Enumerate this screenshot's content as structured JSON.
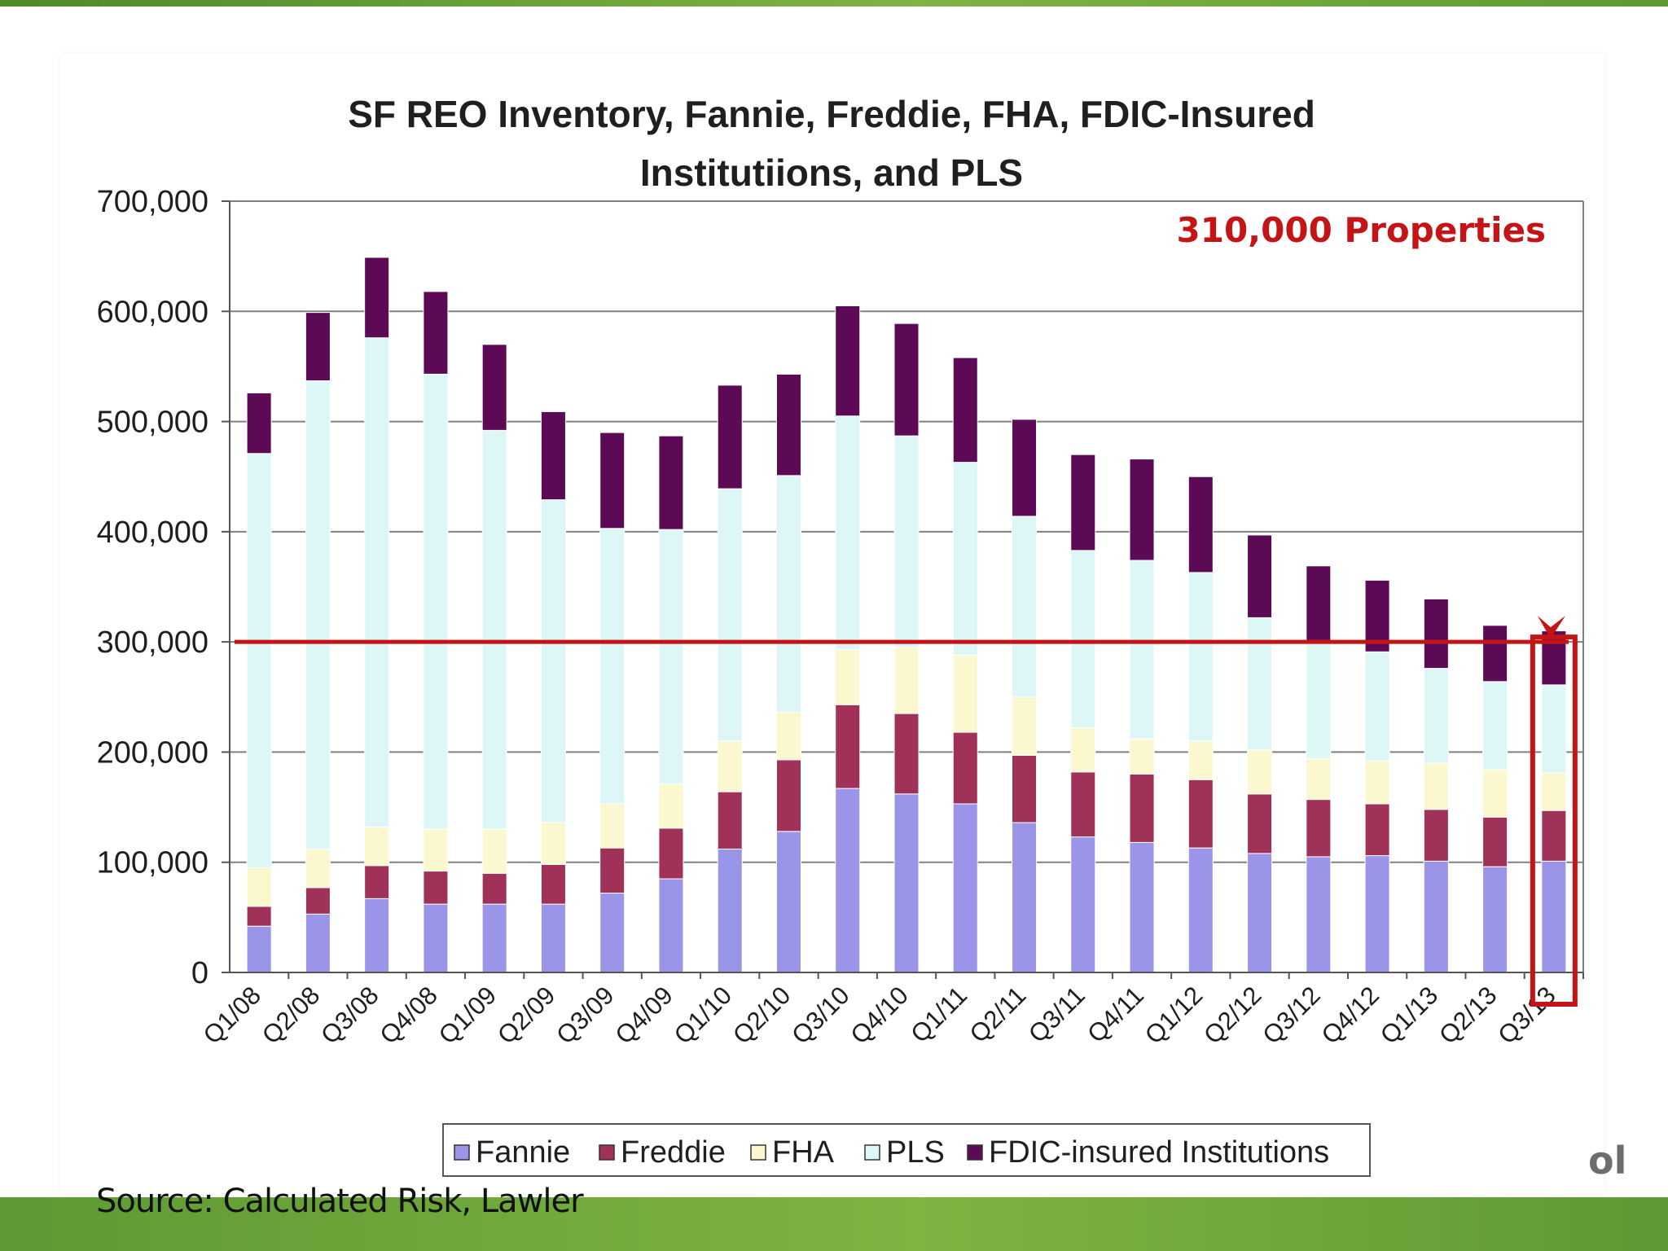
{
  "chart_data": {
    "type": "bar",
    "stacked": true,
    "title": "SF REO Inventory, Fannie, Freddie, FHA, FDIC-Insured",
    "title_line2": "Institutiions, and PLS",
    "categories": [
      "Q1/08",
      "Q2/08",
      "Q3/08",
      "Q4/08",
      "Q1/09",
      "Q2/09",
      "Q3/09",
      "Q4/09",
      "Q1/10",
      "Q2/10",
      "Q3/10",
      "Q4/10",
      "Q1/11",
      "Q2/11",
      "Q3/11",
      "Q4/11",
      "Q1/12",
      "Q2/12",
      "Q3/12",
      "Q4/12",
      "Q1/13",
      "Q2/13",
      "Q3/13"
    ],
    "ylim": [
      0,
      700000
    ],
    "yticks": [
      0,
      100000,
      200000,
      300000,
      400000,
      500000,
      600000,
      700000
    ],
    "ytick_labels": [
      "0",
      "100,000",
      "200,000",
      "300,000",
      "400,000",
      "500,000",
      "600,000",
      "700,000"
    ],
    "grid": true,
    "legend_position": "bottom",
    "series": [
      {
        "name": "Fannie",
        "color": "#9a95e8",
        "values": [
          42000,
          53000,
          67000,
          62000,
          62000,
          62000,
          72000,
          85000,
          112000,
          128000,
          167000,
          162000,
          153000,
          136000,
          123000,
          118000,
          113000,
          108000,
          105000,
          106000,
          101000,
          96000,
          101000
        ]
      },
      {
        "name": "Freddie",
        "color": "#a03158",
        "values": [
          18000,
          24000,
          30000,
          30000,
          28000,
          36000,
          41000,
          46000,
          52000,
          65000,
          76000,
          73000,
          65000,
          61000,
          59000,
          62000,
          62000,
          54000,
          52000,
          47000,
          47000,
          45000,
          46000
        ]
      },
      {
        "name": "FHA",
        "color": "#fbf8cf",
        "values": [
          35000,
          35000,
          35000,
          38000,
          40000,
          38000,
          40000,
          40000,
          46000,
          43000,
          50000,
          60000,
          70000,
          53000,
          40000,
          32000,
          35000,
          40000,
          37000,
          39000,
          42000,
          43000,
          34000
        ]
      },
      {
        "name": "PLS",
        "color": "#dcf7f6",
        "values": [
          376000,
          425000,
          444000,
          413000,
          362000,
          293000,
          250000,
          231000,
          229000,
          215000,
          212000,
          192000,
          175000,
          164000,
          161000,
          162000,
          153000,
          120000,
          106000,
          99000,
          86000,
          80000,
          80000
        ]
      },
      {
        "name": "FDIC-insured Institutions",
        "color": "#5c0a56",
        "values": [
          55000,
          62000,
          73000,
          75000,
          78000,
          80000,
          87000,
          85000,
          94000,
          92000,
          100000,
          102000,
          95000,
          88000,
          87000,
          92000,
          87000,
          75000,
          69000,
          65000,
          63000,
          51000,
          49000
        ]
      }
    ],
    "annotation": {
      "text": "310,000 Properties",
      "reference_value": 300000,
      "highlight_category": "Q3/13",
      "color": "#c41416"
    }
  },
  "source_note": "Source: Calculated Risk, Lawler",
  "corner_mark": "ol",
  "colors": {
    "accent_green": "#6fa83a",
    "highlight_red": "#c41416"
  }
}
